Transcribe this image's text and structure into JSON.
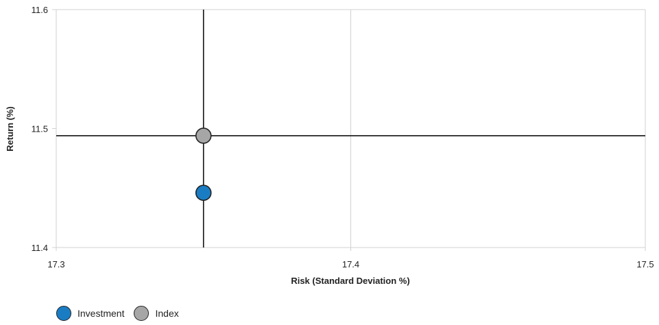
{
  "chart_data": {
    "type": "scatter",
    "xlabel": "Risk (Standard Deviation %)",
    "ylabel": "Return (%)",
    "xlim": [
      17.3,
      17.5
    ],
    "ylim": [
      11.4,
      11.6
    ],
    "xticks": [
      "17.3",
      "17.4",
      "17.5"
    ],
    "yticks": [
      "11.4",
      "11.5",
      "11.6"
    ],
    "grid": "vertical gridlines at x ticks",
    "legend_position": "bottom-left",
    "reference_lines": {
      "x": 17.35,
      "y": 11.494
    },
    "series": [
      {
        "name": "Investment",
        "color": "#1a7dc4",
        "points": [
          {
            "x": 17.35,
            "y": 11.446
          }
        ]
      },
      {
        "name": "Index",
        "color": "#a6a6a6",
        "points": [
          {
            "x": 17.35,
            "y": 11.494
          }
        ]
      }
    ]
  }
}
